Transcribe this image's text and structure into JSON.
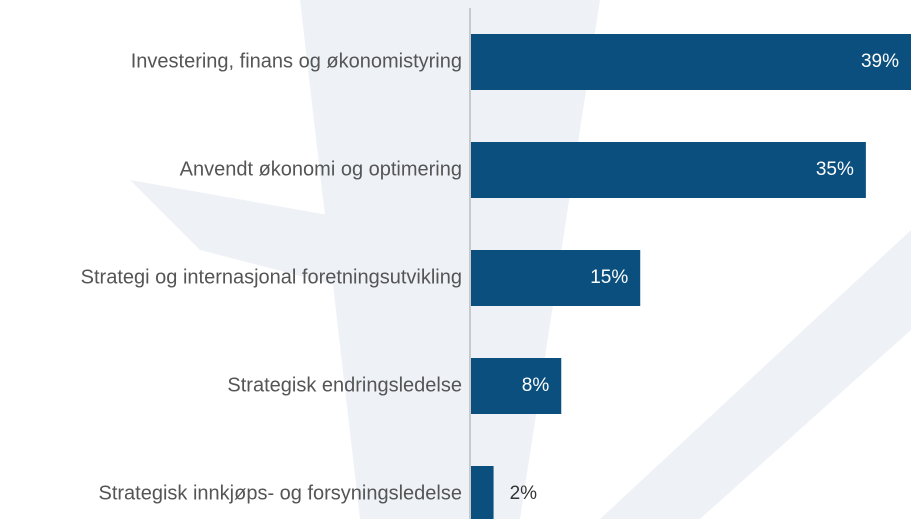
{
  "chart_data": {
    "type": "bar",
    "orientation": "horizontal",
    "categories": [
      "Investering, finans og økonomistyring",
      "Anvendt økonomi og optimering",
      "Strategi og internasjonal foretningsutvikling",
      "Strategisk endringsledelse",
      "Strategisk innkjøps- og forsyningsledelse"
    ],
    "values": [
      39,
      35,
      15,
      8,
      2
    ],
    "value_labels": [
      "39%",
      "35%",
      "15%",
      "8%",
      "2%"
    ],
    "color": "#0b4f7f",
    "xlim": [
      0,
      39
    ]
  }
}
